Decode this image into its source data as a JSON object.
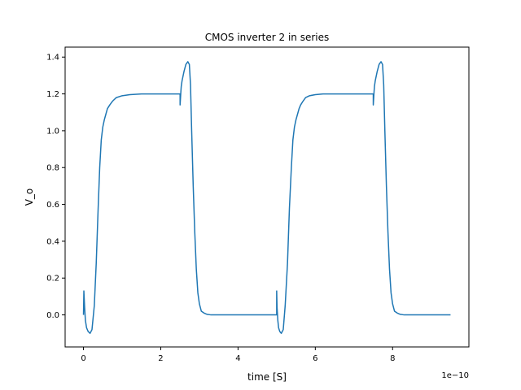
{
  "chart_data": {
    "type": "line",
    "title": "CMOS inverter 2 in series",
    "xlabel": "time [S]",
    "ylabel": "V_o",
    "x_offset_label": "1e−10",
    "xlim": [
      -0.475,
      9.975
    ],
    "ylim": [
      -0.174,
      1.454
    ],
    "x_ticks": [
      0,
      2,
      4,
      6,
      8
    ],
    "x_tick_labels": [
      "0",
      "2",
      "4",
      "6",
      "8"
    ],
    "y_ticks": [
      0.0,
      0.2,
      0.4,
      0.6,
      0.8,
      1.0,
      1.2,
      1.4
    ],
    "y_tick_labels": [
      "0.0",
      "0.2",
      "0.4",
      "0.6",
      "0.8",
      "1.0",
      "1.2",
      "1.4"
    ],
    "grid": false,
    "series": [
      {
        "color": "#1f77b4",
        "x": [
          0.0,
          0.01,
          0.03,
          0.05,
          0.08,
          0.12,
          0.17,
          0.22,
          0.28,
          0.33,
          0.38,
          0.42,
          0.46,
          0.5,
          0.54,
          0.58,
          0.62,
          0.68,
          0.75,
          0.85,
          1.0,
          1.2,
          1.5,
          2.0,
          2.5,
          2.5,
          2.52,
          2.53,
          2.55,
          2.6,
          2.65,
          2.7,
          2.74,
          2.77,
          2.8,
          2.84,
          2.88,
          2.92,
          2.96,
          3.0,
          3.05,
          3.12,
          3.2,
          3.3,
          3.45,
          3.6,
          4.0,
          5.0,
          5.0,
          5.01,
          5.03,
          5.05,
          5.08,
          5.12,
          5.17,
          5.22,
          5.28,
          5.33,
          5.38,
          5.42,
          5.46,
          5.5,
          5.54,
          5.58,
          5.62,
          5.68,
          5.75,
          5.85,
          6.0,
          6.2,
          6.5,
          7.0,
          7.5,
          7.5,
          7.52,
          7.53,
          7.55,
          7.6,
          7.65,
          7.7,
          7.74,
          7.77,
          7.8,
          7.84,
          7.88,
          7.92,
          7.96,
          8.0,
          8.05,
          8.12,
          8.2,
          8.3,
          8.45,
          8.6,
          9.0,
          9.5
        ],
        "y": [
          0.0,
          0.13,
          0.04,
          -0.03,
          -0.07,
          -0.09,
          -0.1,
          -0.08,
          0.05,
          0.28,
          0.58,
          0.8,
          0.95,
          1.02,
          1.06,
          1.09,
          1.12,
          1.14,
          1.16,
          1.18,
          1.19,
          1.196,
          1.2,
          1.2,
          1.2,
          1.14,
          1.21,
          1.24,
          1.27,
          1.32,
          1.36,
          1.375,
          1.36,
          1.25,
          1.0,
          0.7,
          0.45,
          0.25,
          0.12,
          0.06,
          0.02,
          0.01,
          0.003,
          0.0,
          0.0,
          0.0,
          0.0,
          0.0,
          0.13,
          0.04,
          -0.03,
          -0.07,
          -0.09,
          -0.1,
          -0.08,
          0.05,
          0.28,
          0.58,
          0.8,
          0.95,
          1.02,
          1.06,
          1.09,
          1.12,
          1.14,
          1.16,
          1.18,
          1.19,
          1.196,
          1.2,
          1.2,
          1.2,
          1.2,
          1.14,
          1.21,
          1.24,
          1.27,
          1.32,
          1.36,
          1.375,
          1.36,
          1.25,
          1.0,
          0.7,
          0.45,
          0.25,
          0.12,
          0.06,
          0.02,
          0.01,
          0.003,
          0.0,
          0.0,
          0.0,
          0.0,
          0.0
        ]
      }
    ]
  }
}
